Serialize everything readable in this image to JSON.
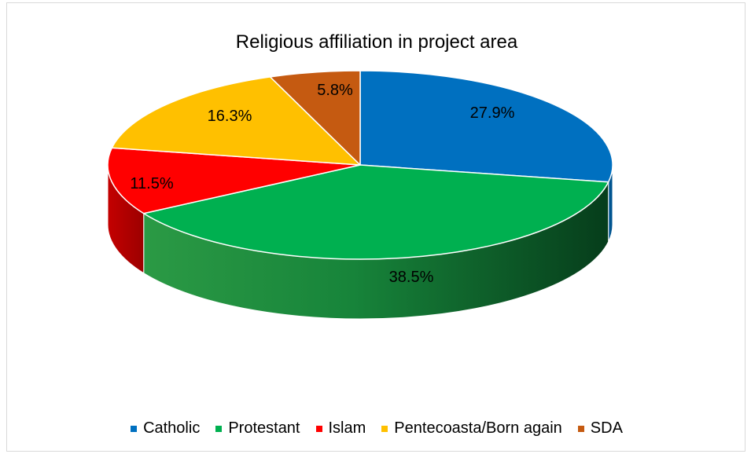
{
  "chart_data": {
    "type": "pie",
    "title": "Religious affiliation in project area",
    "categories": [
      "Catholic",
      "Protestant",
      "Islam",
      "Pentecoasta/Born again",
      "SDA"
    ],
    "values": [
      27.9,
      38.5,
      11.5,
      16.3,
      5.8
    ],
    "data_labels": [
      "27.9%",
      "38.5%",
      "11.5%",
      "16.3%",
      "5.8%"
    ],
    "colors": [
      "#0070C0",
      "#00B050",
      "#FF0000",
      "#FFC000",
      "#C55A11"
    ],
    "style": "3d",
    "legend_position": "bottom"
  }
}
